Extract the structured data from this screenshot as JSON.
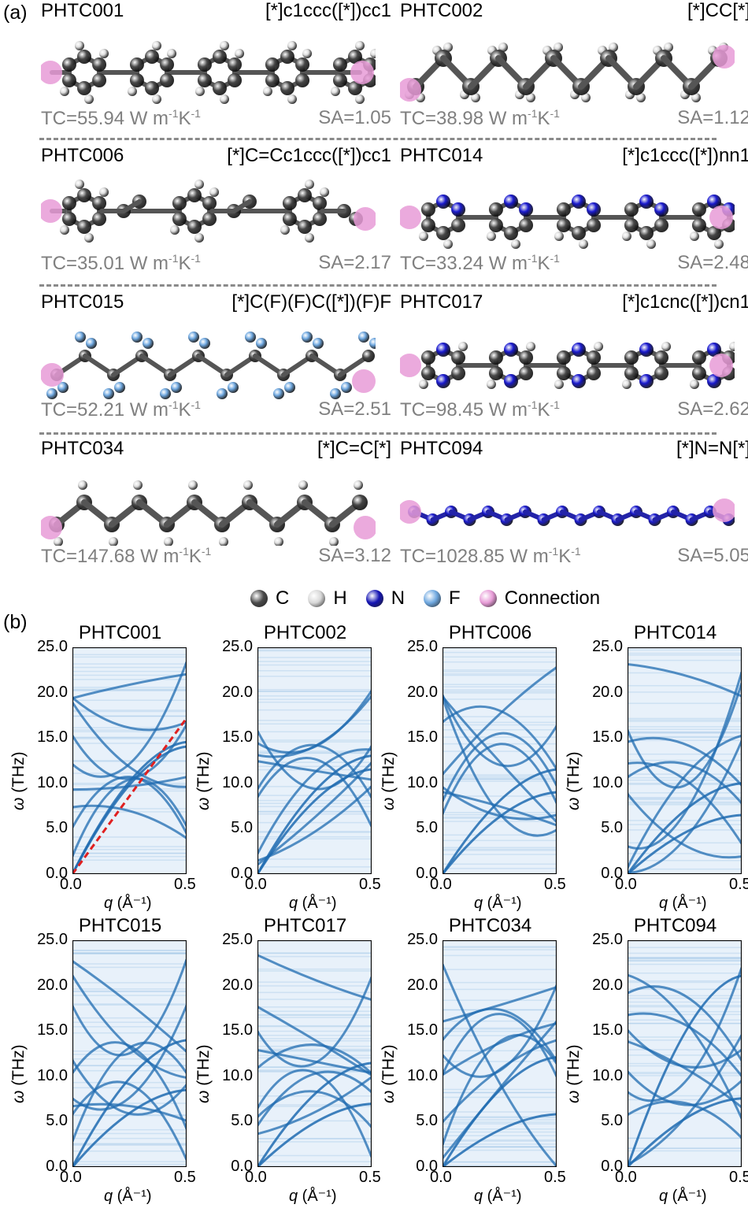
{
  "panel_a_label": "(a)",
  "panel_b_label": "(b)",
  "molecules": [
    {
      "name": "PHTC001",
      "smiles": "[*]c1ccc([*])cc1",
      "tc_prefix": "TC=55.94 W m",
      "sa": "SA=1.05"
    },
    {
      "name": "PHTC002",
      "smiles": "[*]CC[*]",
      "tc_prefix": "TC=38.98 W m",
      "sa": "SA=1.12"
    },
    {
      "name": "PHTC006",
      "smiles": "[*]C=Cc1ccc([*])cc1",
      "tc_prefix": "TC=35.01 W m",
      "sa": "SA=2.17"
    },
    {
      "name": "PHTC014",
      "smiles": "[*]c1ccc([*])nn1",
      "tc_prefix": "TC=33.24 W m",
      "sa": "SA=2.48"
    },
    {
      "name": "PHTC015",
      "smiles": "[*]C(F)(F)C([*])(F)F",
      "tc_prefix": "TC=52.21 W m",
      "sa": "SA=2.51"
    },
    {
      "name": "PHTC017",
      "smiles": "[*]c1cnc([*])cn1",
      "tc_prefix": "TC=98.45 W m",
      "sa": "SA=2.62"
    },
    {
      "name": "PHTC034",
      "smiles": "[*]C=C[*]",
      "tc_prefix": "TC=147.68 W m",
      "sa": "SA=3.12"
    },
    {
      "name": "PHTC094",
      "smiles": "[*]N=N[*]",
      "tc_prefix": "TC=1028.85 W m",
      "sa": "SA=5.05"
    }
  ],
  "tc_unit": {
    "exp1": "-1",
    "mid": "K",
    "exp2": "-1"
  },
  "legend": [
    {
      "label": "C",
      "color": "#4a4a4a",
      "icon": "carbon-atom-ball"
    },
    {
      "label": "H",
      "color": "#d8d8d8",
      "icon": "hydrogen-atom-ball"
    },
    {
      "label": "N",
      "color": "#1414b4",
      "icon": "nitrogen-atom-ball"
    },
    {
      "label": "F",
      "color": "#6fa8e0",
      "icon": "fluorine-atom-ball"
    },
    {
      "label": "Connection",
      "color": "#e79bd7",
      "icon": "connection-site-ball"
    }
  ],
  "colors": {
    "carbon": "#4a4a4a",
    "hydrogen": "#dcdcdc",
    "nitrogen": "#1a1ad0",
    "fluorine": "#6fa8e0",
    "connection": "#e79bd7",
    "phonon_line": "#1f6bb0",
    "phonon_bg": "#e8f1fa",
    "sound_line": "#e02020"
  },
  "chart_data": [
    {
      "type": "heatmap",
      "title": "PHTC001",
      "xlabel_symbol": "q",
      "xlabel_unit": " (Å⁻¹)",
      "ylabel_symbol": "ω",
      "ylabel_unit": " (THz)",
      "xlim": [
        0.0,
        0.5
      ],
      "ylim": [
        0.0,
        25.0
      ],
      "xticks": [
        "0.0",
        "0.5"
      ],
      "yticks": [
        "0.0",
        "5.0",
        "10.0",
        "15.0",
        "20.0",
        "25.0"
      ],
      "sound_velocity_line": {
        "x": [
          0.0,
          0.5
        ],
        "y": [
          0.0,
          17.2
        ]
      }
    },
    {
      "type": "heatmap",
      "title": "PHTC002",
      "xlabel_symbol": "q",
      "xlabel_unit": " (Å⁻¹)",
      "ylabel_symbol": "ω",
      "ylabel_unit": " (THz)",
      "xlim": [
        0.0,
        0.5
      ],
      "ylim": [
        0.0,
        25.0
      ],
      "xticks": [
        "0.0",
        "0.5"
      ],
      "yticks": [
        "0.0",
        "5.0",
        "10.0",
        "15.0",
        "20.0",
        "25.0"
      ]
    },
    {
      "type": "heatmap",
      "title": "PHTC006",
      "xlabel_symbol": "q",
      "xlabel_unit": " (Å⁻¹)",
      "ylabel_symbol": "ω",
      "ylabel_unit": " (THz)",
      "xlim": [
        0.0,
        0.5
      ],
      "ylim": [
        0.0,
        25.0
      ],
      "xticks": [
        "0.0",
        "0.5"
      ],
      "yticks": [
        "0.0",
        "5.0",
        "10.0",
        "15.0",
        "20.0",
        "25.0"
      ]
    },
    {
      "type": "heatmap",
      "title": "PHTC014",
      "xlabel_symbol": "q",
      "xlabel_unit": " (Å⁻¹)",
      "ylabel_symbol": "ω",
      "ylabel_unit": " (THz)",
      "xlim": [
        0.0,
        0.5
      ],
      "ylim": [
        0.0,
        25.0
      ],
      "xticks": [
        "0.0",
        "0.5"
      ],
      "yticks": [
        "0.0",
        "5.0",
        "10.0",
        "15.0",
        "20.0",
        "25.0"
      ]
    },
    {
      "type": "heatmap",
      "title": "PHTC015",
      "xlabel_symbol": "q",
      "xlabel_unit": " (Å⁻¹)",
      "ylabel_symbol": "ω",
      "ylabel_unit": " (THz)",
      "xlim": [
        0.0,
        0.5
      ],
      "ylim": [
        0.0,
        25.0
      ],
      "xticks": [
        "0.0",
        "0.5"
      ],
      "yticks": [
        "0.0",
        "5.0",
        "10.0",
        "15.0",
        "20.0",
        "25.0"
      ]
    },
    {
      "type": "heatmap",
      "title": "PHTC017",
      "xlabel_symbol": "q",
      "xlabel_unit": " (Å⁻¹)",
      "ylabel_symbol": "ω",
      "ylabel_unit": " (THz)",
      "xlim": [
        0.0,
        0.5
      ],
      "ylim": [
        0.0,
        25.0
      ],
      "xticks": [
        "0.0",
        "0.5"
      ],
      "yticks": [
        "0.0",
        "5.0",
        "10.0",
        "15.0",
        "20.0",
        "25.0"
      ]
    },
    {
      "type": "heatmap",
      "title": "PHTC034",
      "xlabel_symbol": "q",
      "xlabel_unit": " (Å⁻¹)",
      "ylabel_symbol": "ω",
      "ylabel_unit": " (THz)",
      "xlim": [
        0.0,
        0.5
      ],
      "ylim": [
        0.0,
        25.0
      ],
      "xticks": [
        "0.0",
        "0.5"
      ],
      "yticks": [
        "0.0",
        "5.0",
        "10.0",
        "15.0",
        "20.0",
        "25.0"
      ]
    },
    {
      "type": "heatmap",
      "title": "PHTC094",
      "xlabel_symbol": "q",
      "xlabel_unit": " (Å⁻¹)",
      "ylabel_symbol": "ω",
      "ylabel_unit": " (THz)",
      "xlim": [
        0.0,
        0.5
      ],
      "ylim": [
        0.0,
        25.0
      ],
      "xticks": [
        "0.0",
        "0.5"
      ],
      "yticks": [
        "0.0",
        "5.0",
        "10.0",
        "15.0",
        "20.0",
        "25.0"
      ]
    }
  ]
}
